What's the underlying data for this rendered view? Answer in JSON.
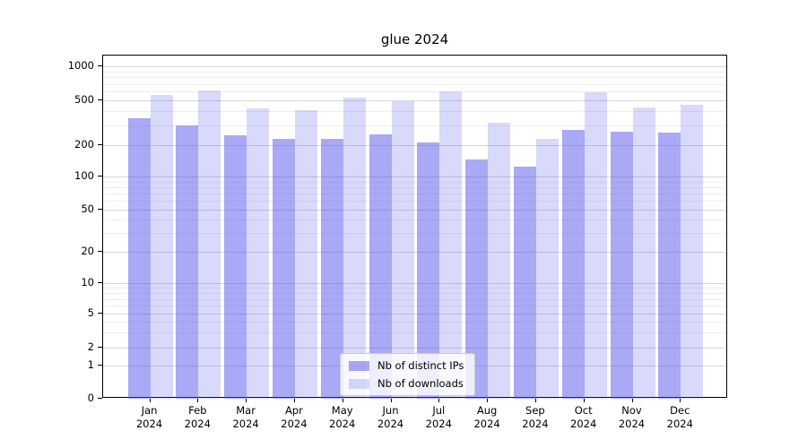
{
  "chart_data": {
    "type": "bar",
    "title": "glue 2024",
    "categories": [
      "Jan 2024",
      "Feb 2024",
      "Mar 2024",
      "Apr 2024",
      "May 2024",
      "Jun 2024",
      "Jul 2024",
      "Aug 2024",
      "Sep 2024",
      "Oct 2024",
      "Nov 2024",
      "Dec 2024"
    ],
    "series": [
      {
        "name": "Nb of distinct IPs",
        "key": "distinct-ips",
        "color": "rgba(80,80,235,0.49)",
        "color_hex_on_white": "#a9a9f4",
        "values": [
          345,
          300,
          245,
          225,
          225,
          250,
          210,
          145,
          125,
          272,
          262,
          257
        ]
      },
      {
        "name": "Nb of downloads",
        "key": "downloads",
        "color": "rgba(80,80,235,0.22)",
        "color_hex_on_white": "#d8d8fa",
        "values": [
          560,
          610,
          420,
          405,
          525,
          495,
          600,
          315,
          228,
          590,
          432,
          458
        ]
      }
    ],
    "yscale": "log-like (compressed toward 0, ticks 0/1/2/5/10/20/50/100/200/500/1000)",
    "yticks": [
      1000,
      500,
      200,
      100,
      50,
      20,
      10,
      5,
      2,
      1,
      0
    ],
    "ylim": [
      0,
      1280
    ],
    "grid": true,
    "legend_position": "lower center, inside plot"
  }
}
